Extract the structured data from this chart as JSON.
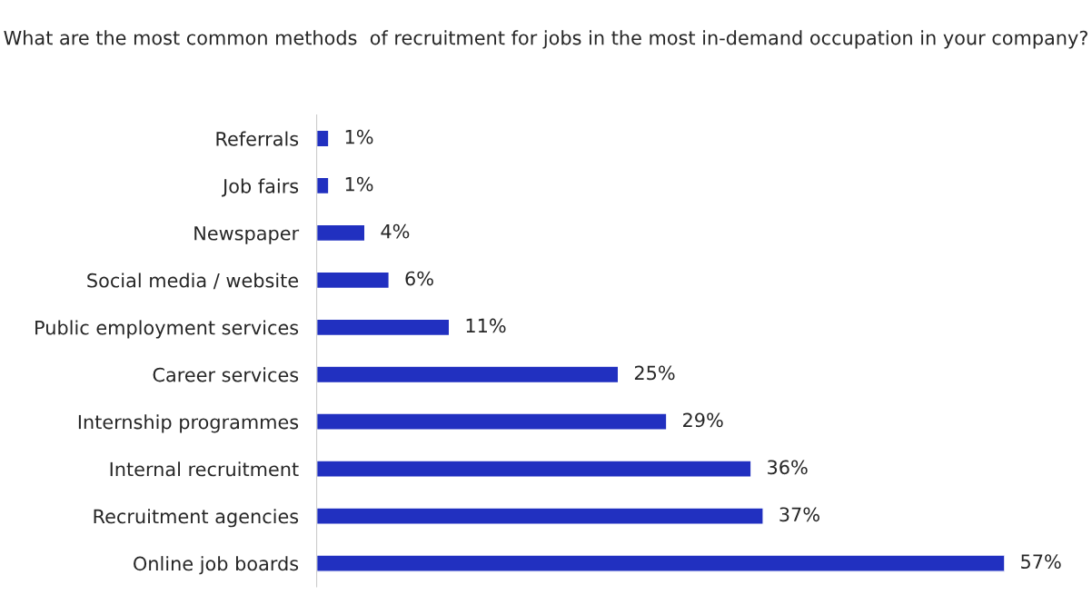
{
  "chart_data": {
    "type": "bar",
    "orientation": "horizontal",
    "title": "What are the most common methods  of recruitment for jobs in the most in-demand occupation in your company?",
    "categories": [
      "Referrals",
      "Job fairs",
      "Newspaper",
      "Social media / website",
      "Public employment services",
      "Career services",
      "Internship programmes",
      "Internal recruitment",
      "Recruitment agencies",
      "Online job boards"
    ],
    "values": [
      1,
      1,
      4,
      6,
      11,
      25,
      29,
      36,
      37,
      57
    ],
    "value_labels": [
      "1%",
      "1%",
      "4%",
      "6%",
      "11%",
      "25%",
      "29%",
      "36%",
      "37%",
      "57%"
    ],
    "color": "#2130c0",
    "grid": false,
    "legend": false
  }
}
